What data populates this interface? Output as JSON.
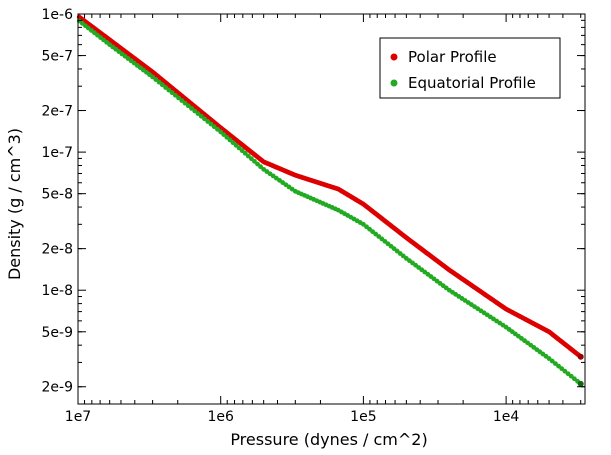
{
  "chart_data": {
    "type": "scatter",
    "title": "",
    "xlabel": "Pressure (dynes / cm^2)",
    "ylabel": "Density (g / cm^3)",
    "xscale": "log",
    "yscale": "log",
    "x_reversed": true,
    "xlim": [
      10000000,
      2800
    ],
    "ylim": [
      1.5e-09,
      1e-06
    ],
    "x_ticks": [
      {
        "value": 10000000,
        "label": "1e7"
      },
      {
        "value": 1000000,
        "label": "1e6"
      },
      {
        "value": 100000,
        "label": "1e5"
      },
      {
        "value": 10000,
        "label": "1e4"
      }
    ],
    "y_ticks": [
      {
        "value": 1e-06,
        "label": "1e-6"
      },
      {
        "value": 5e-07,
        "label": "5e-7"
      },
      {
        "value": 2e-07,
        "label": "2e-7"
      },
      {
        "value": 1e-07,
        "label": "1e-7"
      },
      {
        "value": 5e-08,
        "label": "5e-8"
      },
      {
        "value": 2e-08,
        "label": "2e-8"
      },
      {
        "value": 1e-08,
        "label": "1e-8"
      },
      {
        "value": 5e-09,
        "label": "5e-9"
      },
      {
        "value": 2e-09,
        "label": "2e-9"
      }
    ],
    "legend_position": "top-right",
    "series": [
      {
        "name": "Polar Profile",
        "color": "#dd0000",
        "points": [
          [
            9800000,
            9.5e-07
          ],
          [
            6000000,
            6.5e-07
          ],
          [
            3000000,
            3.8e-07
          ],
          [
            1000000,
            1.5e-07
          ],
          [
            500000,
            8.5e-08
          ],
          [
            300000,
            6.8e-08
          ],
          [
            150000,
            5.4e-08
          ],
          [
            100000,
            4.2e-08
          ],
          [
            50000,
            2.4e-08
          ],
          [
            25000,
            1.4e-08
          ],
          [
            10000,
            7.3e-09
          ],
          [
            5000,
            5e-09
          ],
          [
            3000,
            3.3e-09
          ]
        ]
      },
      {
        "name": "Equatorial Profile",
        "color": "#22aa22",
        "points": [
          [
            9800000,
            8.9e-07
          ],
          [
            6000000,
            6e-07
          ],
          [
            3000000,
            3.5e-07
          ],
          [
            1000000,
            1.4e-07
          ],
          [
            500000,
            7.5e-08
          ],
          [
            300000,
            5.2e-08
          ],
          [
            150000,
            3.8e-08
          ],
          [
            100000,
            3e-08
          ],
          [
            50000,
            1.7e-08
          ],
          [
            25000,
            1e-08
          ],
          [
            10000,
            5.4e-09
          ],
          [
            5000,
            3.2e-09
          ],
          [
            3000,
            2.1e-09
          ]
        ]
      }
    ]
  }
}
